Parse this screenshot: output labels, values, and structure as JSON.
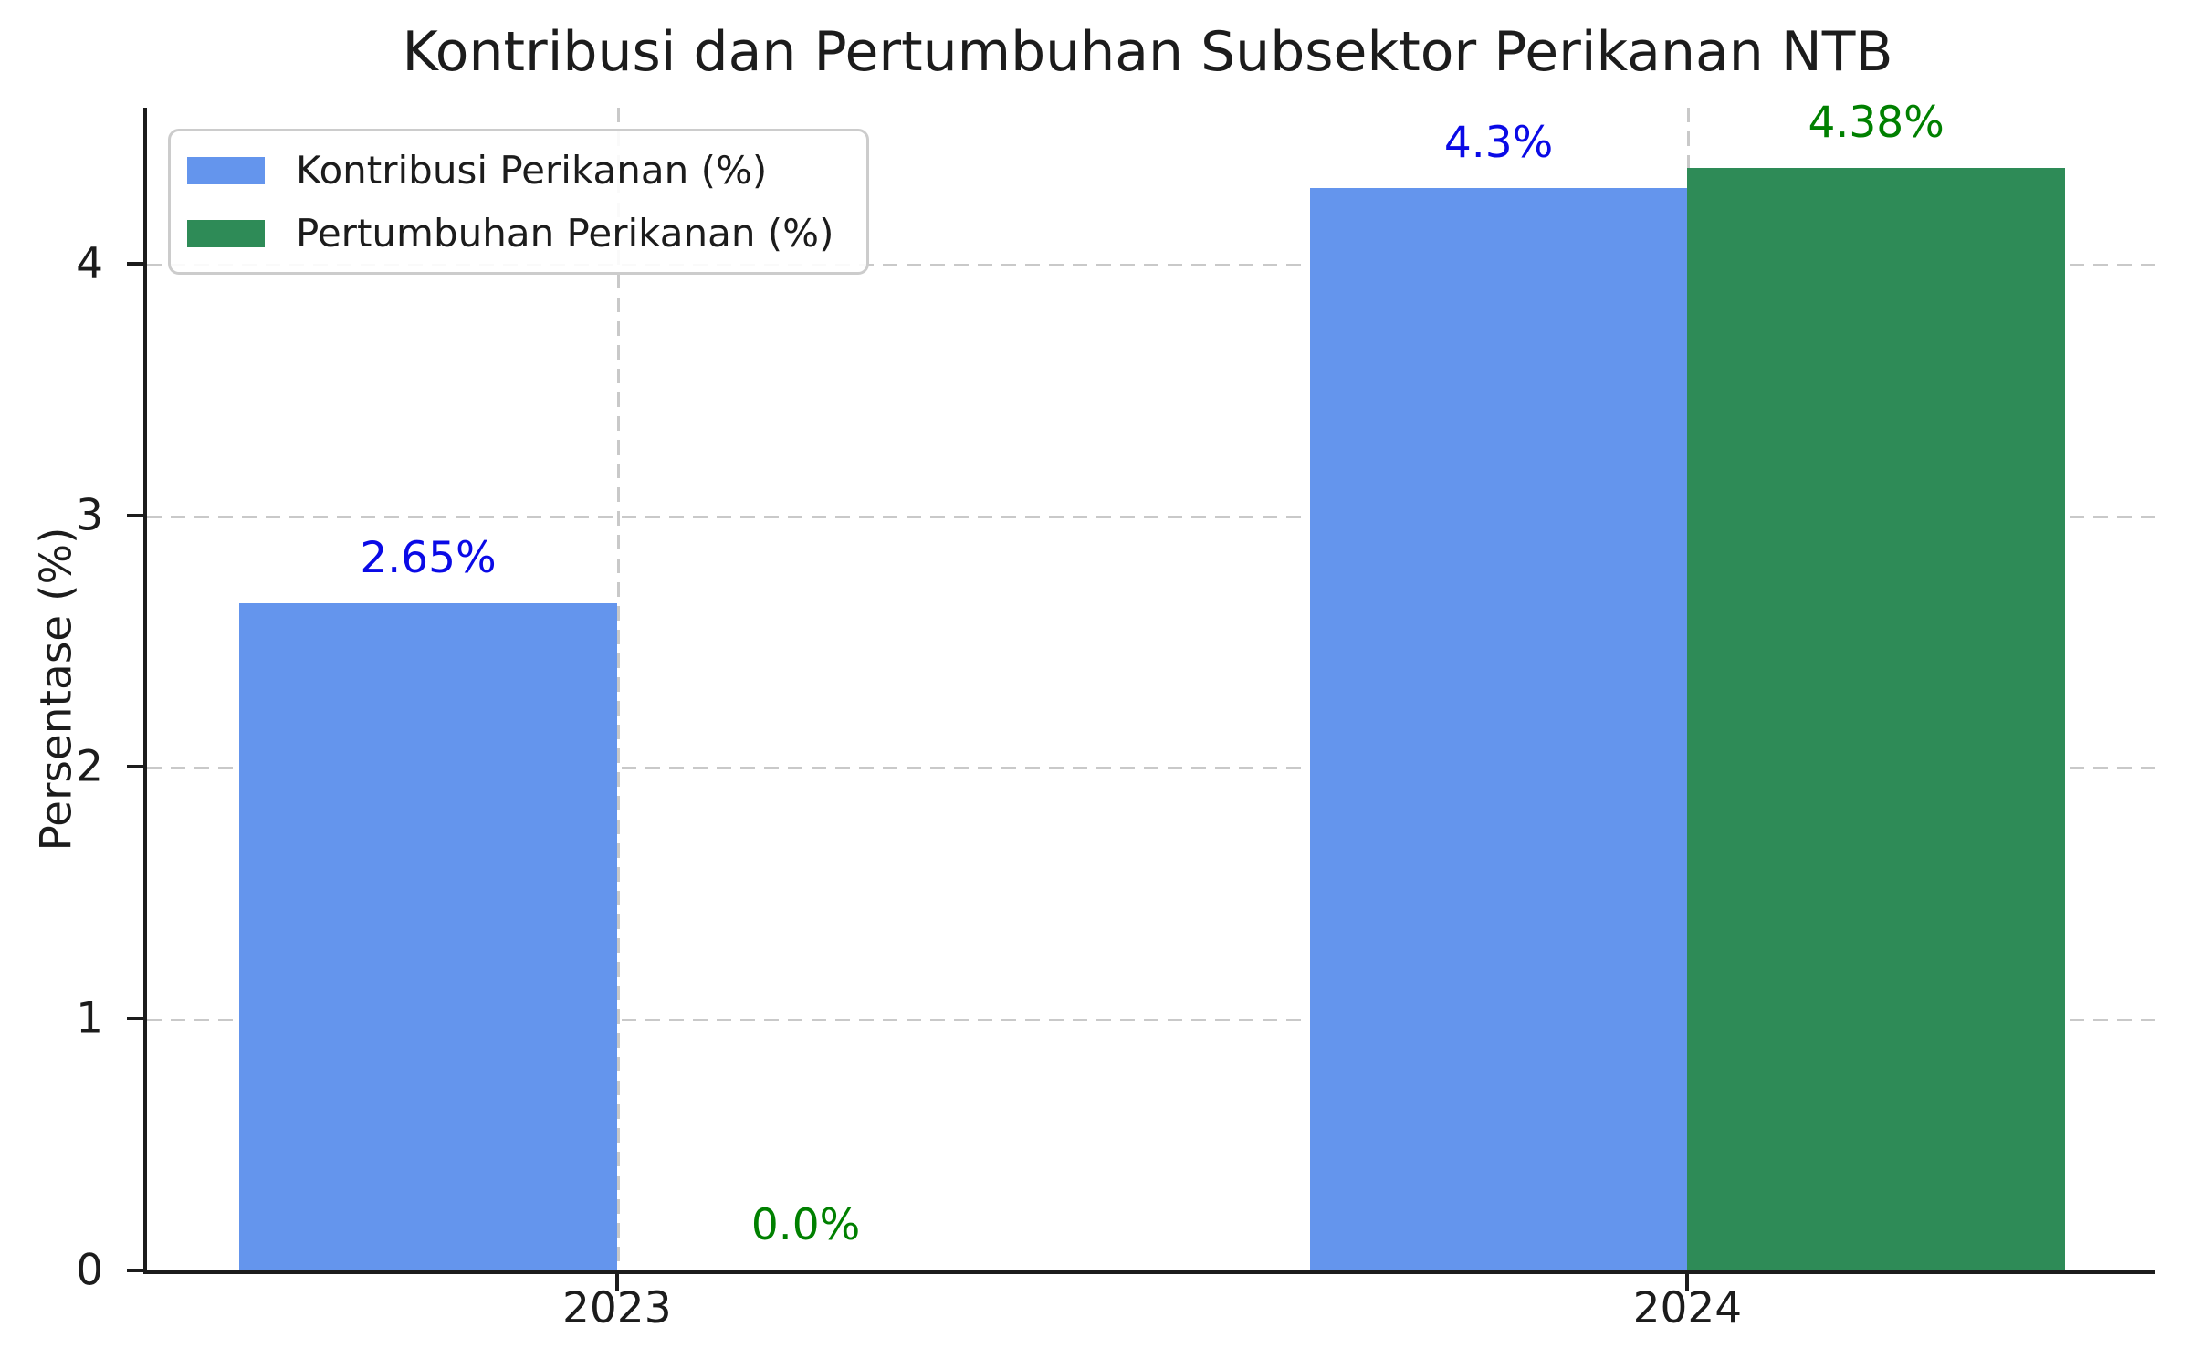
{
  "chart_data": {
    "type": "bar",
    "title": "Kontribusi dan Pertumbuhan Subsektor Perikanan NTB",
    "categories": [
      "2023",
      "2024"
    ],
    "series": [
      {
        "name": "Kontribusi Perikanan (%)",
        "color": "#6495ED",
        "label_color": "#0A0AE6",
        "values": [
          2.65,
          4.3
        ],
        "labels": [
          "2.65%",
          "4.3%"
        ]
      },
      {
        "name": "Pertumbuhan Perikanan (%)",
        "color": "#2E8B57",
        "label_color": "#008000",
        "values": [
          0.0,
          4.38
        ],
        "labels": [
          "0.0%",
          "4.38%"
        ]
      }
    ],
    "xlabel": "",
    "ylabel": "Persentase (%)",
    "yticks": [
      "0",
      "1",
      "2",
      "3",
      "4"
    ],
    "ylim": [
      0,
      4.62
    ],
    "grid": {
      "style": "dashed",
      "color": "#c9c9c9",
      "axes": "both"
    },
    "legend_position": "upper-left"
  }
}
